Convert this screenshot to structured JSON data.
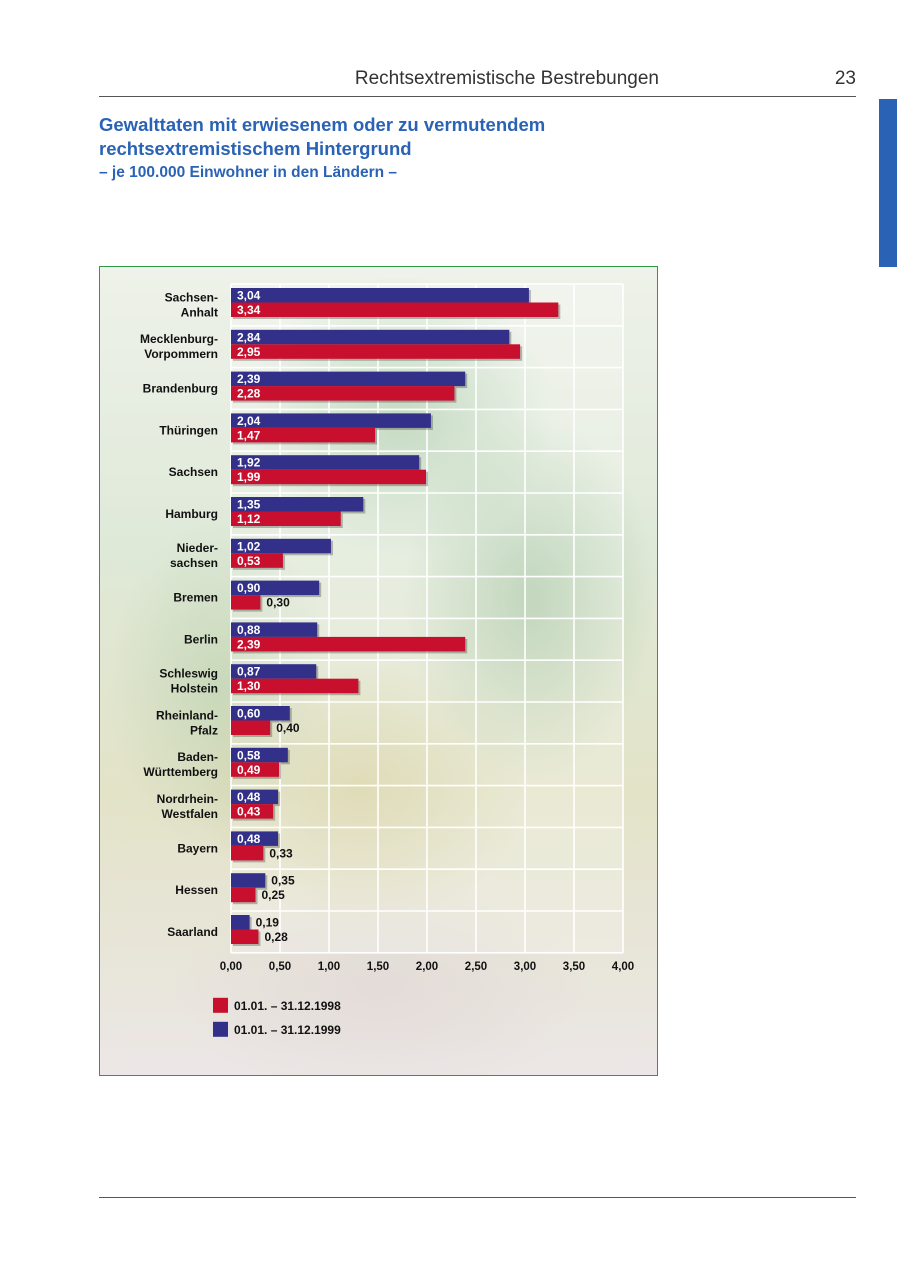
{
  "header": {
    "running_title": "Rechtsextremistische Bestrebungen",
    "page_number": "23"
  },
  "heading": {
    "line1": "Gewalttaten mit erwiesenem oder zu vermutendem",
    "line2": "rechtsextremistischem Hintergrund",
    "subtitle": "– je 100.000 Einwohner in den Ländern –"
  },
  "colors": {
    "accent": "#2a63b6",
    "frame": "#2e9a46",
    "series_1999": "#33308a",
    "series_1998": "#c8102e"
  },
  "chart_data": {
    "type": "bar",
    "orientation": "horizontal",
    "categories": [
      [
        "Sachsen-",
        "Anhalt"
      ],
      [
        "Mecklenburg-",
        "Vorpommern"
      ],
      [
        "Brandenburg"
      ],
      [
        "Thüringen"
      ],
      [
        "Sachsen"
      ],
      [
        "Hamburg"
      ],
      [
        "Nieder-",
        "sachsen"
      ],
      [
        "Bremen"
      ],
      [
        "Berlin"
      ],
      [
        "Schleswig",
        "Holstein"
      ],
      [
        "Rheinland-",
        "Pfalz"
      ],
      [
        "Baden-",
        "Württemberg"
      ],
      [
        "Nordrhein-",
        "Westfalen"
      ],
      [
        "Bayern"
      ],
      [
        "Hessen"
      ],
      [
        "Saarland"
      ]
    ],
    "series": [
      {
        "name": "01.01. – 31.12.1999",
        "color": "#33308a",
        "values": [
          3.04,
          2.84,
          2.39,
          2.04,
          1.92,
          1.35,
          1.02,
          0.9,
          0.88,
          0.87,
          0.6,
          0.58,
          0.48,
          0.48,
          0.35,
          0.19
        ],
        "labels": [
          "3,04",
          "2,84",
          "2,39",
          "2,04",
          "1,92",
          "1,35",
          "1,02",
          "0,90",
          "0,88",
          "0,87",
          "0,60",
          "0,58",
          "0,48",
          "0,48",
          "0,35",
          "0,19"
        ]
      },
      {
        "name": "01.01. – 31.12.1998",
        "color": "#c8102e",
        "values": [
          3.34,
          2.95,
          2.28,
          1.47,
          1.99,
          1.12,
          0.53,
          0.3,
          2.39,
          1.3,
          0.4,
          0.49,
          0.43,
          0.33,
          0.25,
          0.28
        ],
        "labels": [
          "3,34",
          "2,95",
          "2,28",
          "1,47",
          "1,99",
          "1,12",
          "0,53",
          "0,30",
          "2,39",
          "1,30",
          "0,40",
          "0,49",
          "0,43",
          "0,33",
          "0,25",
          "0,28"
        ]
      }
    ],
    "xlim": [
      0,
      4
    ],
    "x_ticks": [
      "0,00",
      "0,50",
      "1,00",
      "1,50",
      "2,00",
      "2,50",
      "3,00",
      "3,50",
      "4,00"
    ],
    "grid": true,
    "legend": {
      "position": "bottom-left",
      "order": [
        "01.01. – 31.12.1998",
        "01.01. – 31.12.1999"
      ]
    },
    "xlabel": "",
    "ylabel": ""
  }
}
